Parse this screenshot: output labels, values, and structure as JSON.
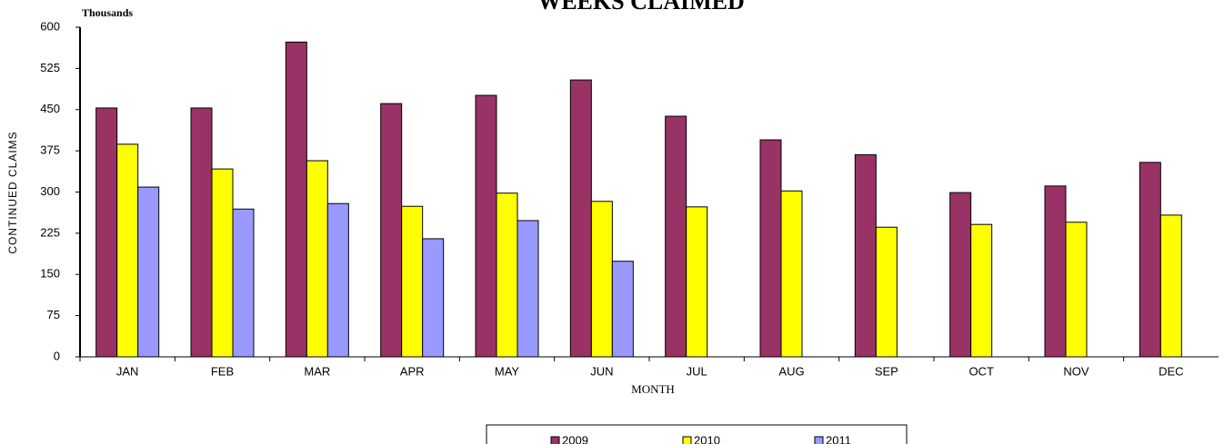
{
  "chart_data": {
    "type": "bar",
    "title": "WEEKS CLAIMED",
    "units_label": "Thousands",
    "y_label": "CONTINUED CLAIMS",
    "x_label": "MONTH",
    "categories": [
      "JAN",
      "FEB",
      "MAR",
      "APR",
      "MAY",
      "JUN",
      "JUL",
      "AUG",
      "SEP",
      "OCT",
      "NOV",
      "DEC"
    ],
    "series": [
      {
        "name": "2009",
        "color": "#993366",
        "values": [
          453,
          453,
          573,
          461,
          476,
          504,
          438,
          395,
          368,
          299,
          311,
          354
        ]
      },
      {
        "name": "2010",
        "color": "#ffff00",
        "values": [
          387,
          342,
          357,
          274,
          298,
          283,
          273,
          302,
          236,
          241,
          245,
          258
        ]
      },
      {
        "name": "2011",
        "color": "#9999ff",
        "values": [
          309,
          269,
          279,
          215,
          248,
          174,
          null,
          null,
          null,
          null,
          null,
          null
        ]
      }
    ],
    "ylim": [
      0,
      600
    ],
    "yticks": [
      0,
      75,
      150,
      225,
      300,
      375,
      450,
      525,
      600
    ]
  }
}
